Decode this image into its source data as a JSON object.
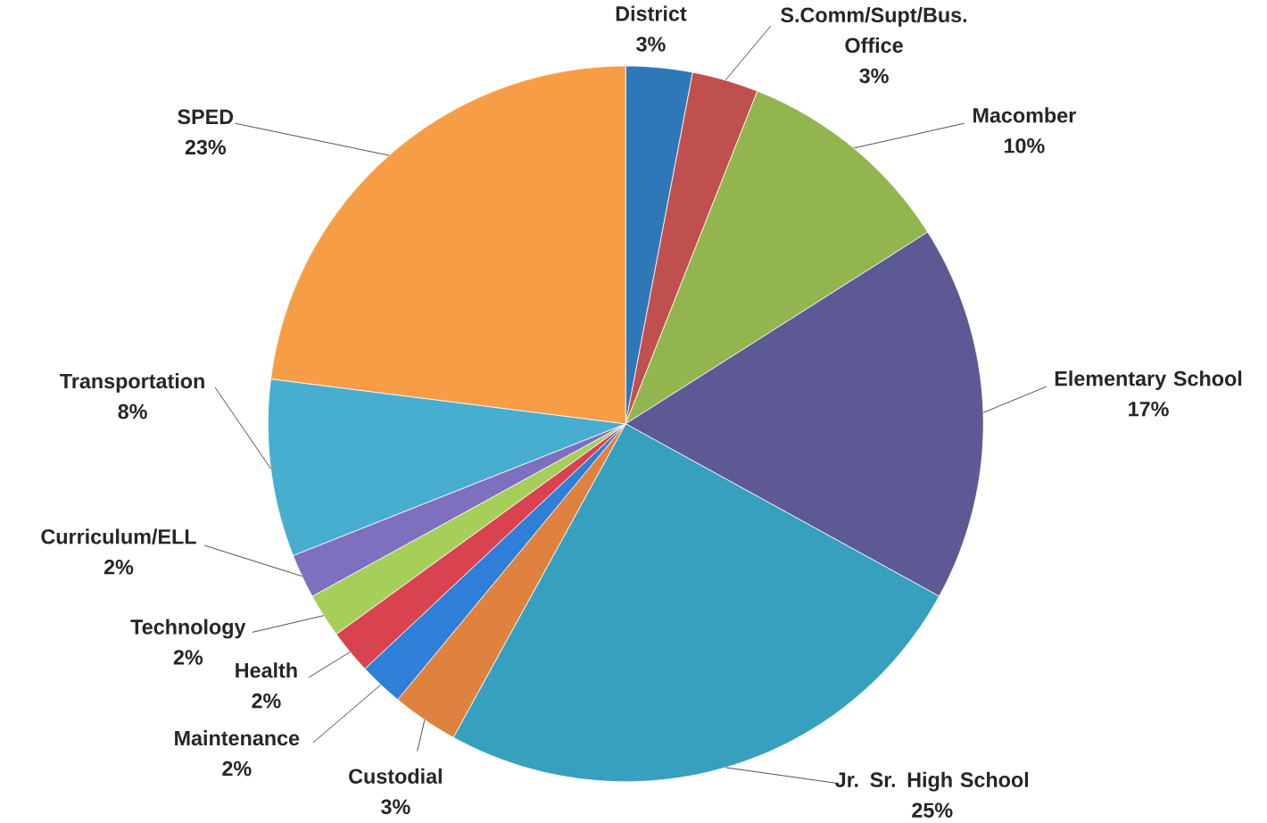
{
  "chart_data": {
    "type": "pie",
    "categories": [
      "District",
      "S.Comm/Supt/Bus. Office",
      "Macomber",
      "Elementary School",
      "Jr. Sr. High School",
      "Custodial",
      "Maintenance",
      "Health",
      "Technology",
      "Curriculum/ELL",
      "Transportation",
      "SPED"
    ],
    "values": [
      3,
      3,
      10,
      17,
      25,
      3,
      2,
      2,
      2,
      2,
      8,
      23
    ],
    "value_labels": [
      "3%",
      "3%",
      "10%",
      "17%",
      "25%",
      "3%",
      "2%",
      "2%",
      "2%",
      "2%",
      "8%",
      "23%"
    ],
    "colors": [
      "#2f78b8",
      "#c0504d",
      "#93b54f",
      "#5d5994",
      "#36a0be",
      "#e0823f",
      "#2f7ed8",
      "#d9434f",
      "#a6cf5a",
      "#7f6fbf",
      "#47aed0",
      "#f79d45"
    ]
  }
}
